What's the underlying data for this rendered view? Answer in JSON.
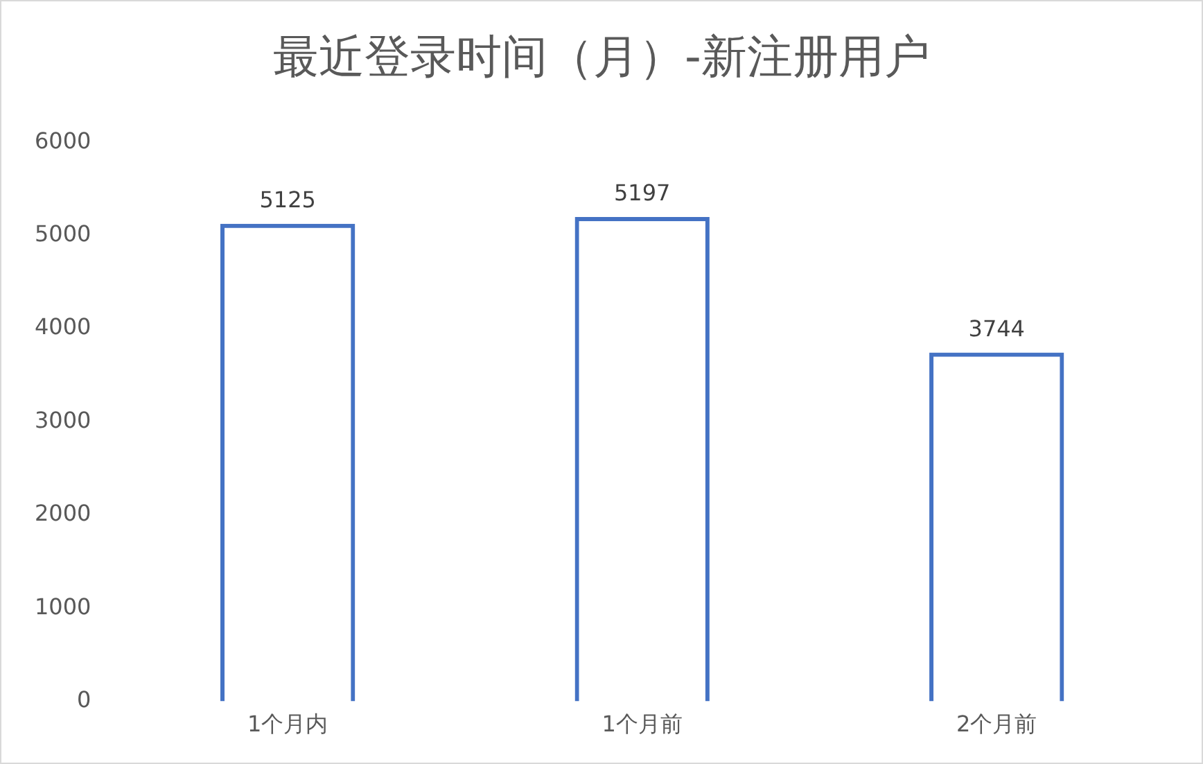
{
  "chart_data": {
    "type": "bar",
    "title": "最近登录时间（月）-新注册用户",
    "categories": [
      "1个月内",
      "1个月前",
      "2个月前"
    ],
    "values": [
      5125,
      5197,
      3744
    ],
    "color": "#4472c4",
    "ylim": [
      0,
      6000
    ],
    "yticks": [
      0,
      1000,
      2000,
      3000,
      4000,
      5000,
      6000
    ],
    "grid": false,
    "legend": false,
    "data_labels": true
  }
}
